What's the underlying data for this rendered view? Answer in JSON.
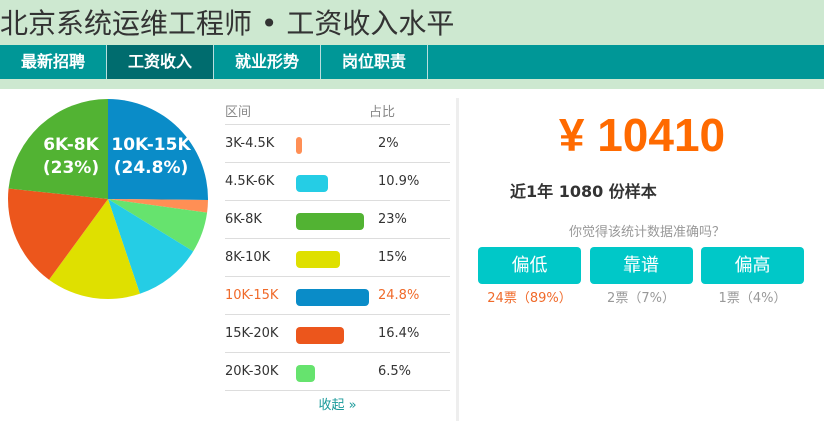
{
  "header": {
    "title": "北京系统运维工程师 • 工资收入水平"
  },
  "nav": {
    "items": [
      {
        "label": "最新招聘",
        "active": false
      },
      {
        "label": "工资收入",
        "active": true
      },
      {
        "label": "就业形势",
        "active": false
      },
      {
        "label": "岗位职责",
        "active": false
      }
    ]
  },
  "chart_data": {
    "type": "pie",
    "labels": [
      {
        "text1": "6K-8K",
        "text2": "(23%)"
      },
      {
        "text1": "10K-15K",
        "text2": "(24.8%)"
      }
    ],
    "slices": [
      {
        "name": "10K-15K",
        "value": 24.8,
        "color": "#0a8cc8"
      },
      {
        "name": "3K-4.5K",
        "value": 2,
        "color": "#ff8f55"
      },
      {
        "name": "20K-30K",
        "value": 6.5,
        "color": "#66e36e"
      },
      {
        "name": "4.5K-6K",
        "value": 10.9,
        "color": "#25cde5"
      },
      {
        "name": "8K-10K",
        "value": 15,
        "color": "#dfe000"
      },
      {
        "name": "15K-20K",
        "value": 16.4,
        "color": "#ec561c"
      },
      {
        "name": "6K-8K",
        "value": 23,
        "color": "#52b333"
      }
    ]
  },
  "table": {
    "headers": {
      "range": "区间",
      "ratio": "占比"
    },
    "rows": [
      {
        "range": "3K-4.5K",
        "pct": 2,
        "ratio": "2%",
        "color": "#ff8f55",
        "highlight": false
      },
      {
        "range": "4.5K-6K",
        "pct": 10.9,
        "ratio": "10.9%",
        "color": "#25cde5",
        "highlight": false
      },
      {
        "range": "6K-8K",
        "pct": 23,
        "ratio": "23%",
        "color": "#52b333",
        "highlight": false
      },
      {
        "range": "8K-10K",
        "pct": 15,
        "ratio": "15%",
        "color": "#dfe000",
        "highlight": false
      },
      {
        "range": "10K-15K",
        "pct": 24.8,
        "ratio": "24.8%",
        "color": "#0a8cc8",
        "highlight": true
      },
      {
        "range": "15K-20K",
        "pct": 16.4,
        "ratio": "16.4%",
        "color": "#ec561c",
        "highlight": false
      },
      {
        "range": "20K-30K",
        "pct": 6.5,
        "ratio": "6.5%",
        "color": "#66e36e",
        "highlight": false
      }
    ],
    "collapse_label": "收起 »"
  },
  "summary": {
    "amount": "¥ 10410",
    "samples": "近1年 1080 份样本",
    "question": "你觉得该统计数据准确吗？",
    "buttons": [
      {
        "label": "偏低",
        "votes": "24票（89%）",
        "color": "#f06a2a"
      },
      {
        "label": "靠谱",
        "votes": "2票（7%）",
        "color": "#999999"
      },
      {
        "label": "偏高",
        "votes": "1票（4%）",
        "color": "#999999"
      }
    ]
  }
}
